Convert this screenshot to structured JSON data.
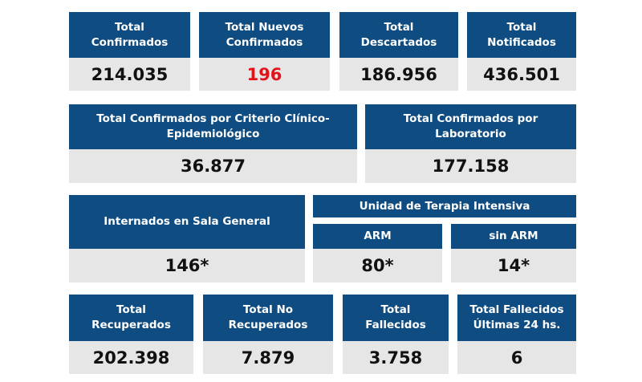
{
  "colors": {
    "header": "#0f4c81",
    "value_bg": "#e6e6e6",
    "highlight": "#e0151b"
  },
  "row1": [
    {
      "label": "Total\nConfirmados",
      "value": "214.035"
    },
    {
      "label": "Total Nuevos\nConfirmados",
      "value": "196"
    },
    {
      "label": "Total\nDescartados",
      "value": "186.956"
    },
    {
      "label": "Total\nNotificados",
      "value": "436.501"
    }
  ],
  "row2": [
    {
      "label": "Total Confirmados por Criterio Clínico-\nEpidemiológico",
      "value": "36.877"
    },
    {
      "label": "Total Confirmados por\nLaboratorio",
      "value": "177.158"
    }
  ],
  "row3": {
    "sala": {
      "label": "Internados en Sala General",
      "value": "146*"
    },
    "uti_title": "Unidad de Terapia Intensiva",
    "arm": {
      "label": "ARM",
      "value": "80*"
    },
    "sin_arm": {
      "label": "sin ARM",
      "value": "14*"
    }
  },
  "row4": [
    {
      "label": "Total\nRecuperados",
      "value": "202.398"
    },
    {
      "label": "Total No\nRecuperados",
      "value": "7.879"
    },
    {
      "label": "Total\nFallecidos",
      "value": "3.758"
    },
    {
      "label": "Total Fallecidos\nÚltimas 24 hs.",
      "value": "6"
    }
  ]
}
